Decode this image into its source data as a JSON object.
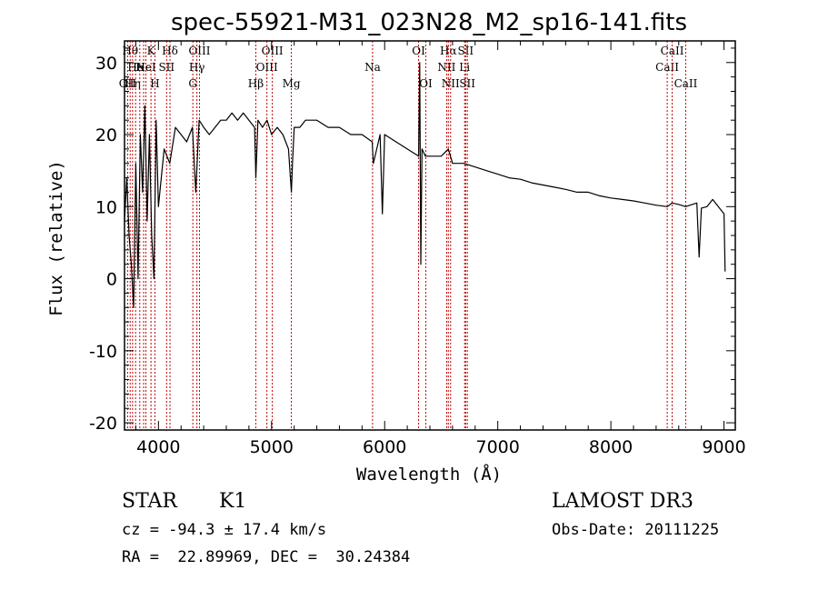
{
  "chart_data": {
    "type": "line",
    "title": "spec-55921-M31_023N28_M2_sp16-141.fits",
    "xlabel": "Wavelength (Å)",
    "ylabel": "Flux (relative)",
    "xlim": [
      3700,
      9100
    ],
    "ylim": [
      -21,
      33
    ],
    "xticks": [
      4000,
      5000,
      6000,
      7000,
      8000,
      9000
    ],
    "yticks": [
      -20,
      -10,
      0,
      10,
      20,
      30
    ],
    "series": [
      {
        "name": "flux",
        "x": [
          3700,
          3720,
          3740,
          3760,
          3780,
          3800,
          3820,
          3840,
          3860,
          3880,
          3900,
          3920,
          3940,
          3960,
          3980,
          4000,
          4050,
          4100,
          4150,
          4200,
          4250,
          4300,
          4330,
          4360,
          4400,
          4450,
          4500,
          4550,
          4600,
          4650,
          4700,
          4750,
          4800,
          4850,
          4861,
          4880,
          4920,
          4960,
          5000,
          5050,
          5100,
          5150,
          5175,
          5185,
          5200,
          5250,
          5300,
          5400,
          5500,
          5600,
          5700,
          5800,
          5890,
          5900,
          5960,
          5980,
          6000,
          6100,
          6200,
          6300,
          6310,
          6320,
          6330,
          6360,
          6400,
          6500,
          6563,
          6600,
          6700,
          6800,
          6900,
          7000,
          7100,
          7200,
          7300,
          7400,
          7500,
          7600,
          7700,
          7800,
          7900,
          8000,
          8100,
          8200,
          8300,
          8400,
          8500,
          8540,
          8600,
          8662,
          8700,
          8760,
          8780,
          8800,
          8850,
          8900,
          8950,
          9000,
          9010
        ],
        "values": [
          8,
          14,
          6,
          2,
          -4,
          16,
          0,
          20,
          12,
          24,
          8,
          20,
          6,
          0,
          22,
          10,
          18,
          16,
          21,
          20,
          19,
          21,
          12,
          22,
          21,
          20,
          21,
          22,
          22,
          23,
          22,
          23,
          22,
          21,
          14,
          22,
          21,
          22,
          20,
          21,
          20,
          18,
          12,
          16,
          21,
          21,
          22,
          22,
          21,
          21,
          20,
          20,
          19,
          16,
          20,
          9,
          20,
          19,
          18,
          17,
          30,
          2,
          18,
          17,
          17,
          17,
          18,
          16,
          16,
          15.5,
          15,
          14.5,
          14,
          13.8,
          13.3,
          13,
          12.7,
          12.4,
          12,
          12,
          11.5,
          11.2,
          11,
          10.8,
          10.5,
          10.2,
          10,
          10.5,
          10.3,
          10,
          10.2,
          10.5,
          3,
          9.8,
          10,
          11,
          10,
          9,
          1
        ]
      }
    ],
    "line_markers": [
      {
        "w": 3727,
        "label": "OII",
        "row": 2
      },
      {
        "w": 3750,
        "label": "Hθ",
        "row": 0
      },
      {
        "w": 3771,
        "label": "Hη",
        "row": 2
      },
      {
        "w": 3798,
        "label": "He",
        "row": 1
      },
      {
        "w": 3835,
        "label": "",
        "row": 0
      },
      {
        "w": 3869,
        "label": "Ne",
        "row": 1
      },
      {
        "w": 3889,
        "label": "HeI",
        "row": 1
      },
      {
        "w": 3934,
        "label": "K",
        "row": 0
      },
      {
        "w": 3969,
        "label": "H",
        "row": 2
      },
      {
        "w": 4072,
        "label": "SII",
        "row": 1
      },
      {
        "w": 4102,
        "label": "Hδ",
        "row": 0
      },
      {
        "w": 4304,
        "label": "G",
        "row": 2
      },
      {
        "w": 4340,
        "label": "Hγ",
        "row": 1
      },
      {
        "w": 4363,
        "label": "OIII",
        "row": 0
      },
      {
        "w": 4861,
        "label": "Hβ",
        "row": 2
      },
      {
        "w": 4959,
        "label": "OIII",
        "row": 1
      },
      {
        "w": 5007,
        "label": "OIII",
        "row": 0
      },
      {
        "w": 5175,
        "label": "Mg",
        "row": 2
      },
      {
        "w": 5893,
        "label": "Na",
        "row": 1
      },
      {
        "w": 6300,
        "label": "OI",
        "row": 0
      },
      {
        "w": 6364,
        "label": "OI",
        "row": 2
      },
      {
        "w": 6548,
        "label": "NII",
        "row": 1
      },
      {
        "w": 6563,
        "label": "Hα",
        "row": 0
      },
      {
        "w": 6583,
        "label": "NII",
        "row": 2
      },
      {
        "w": 6707,
        "label": "Li",
        "row": 1
      },
      {
        "w": 6716,
        "label": "SII",
        "row": 0
      },
      {
        "w": 6731,
        "label": "SII",
        "row": 2
      },
      {
        "w": 8498,
        "label": "CaII",
        "row": 1
      },
      {
        "w": 8542,
        "label": "CaII",
        "row": 0
      },
      {
        "w": 8662,
        "label": "CaII",
        "row": 2
      }
    ]
  },
  "info": {
    "class_label": "STAR",
    "subclass_label": "K1",
    "cz_text": "cz = -94.3 ± 17.4 km/s",
    "radec_text": "RA =  22.89969, DEC =  30.24384",
    "survey_text": "LAMOST DR3",
    "obsdate_text": "Obs-Date: 20111225"
  }
}
